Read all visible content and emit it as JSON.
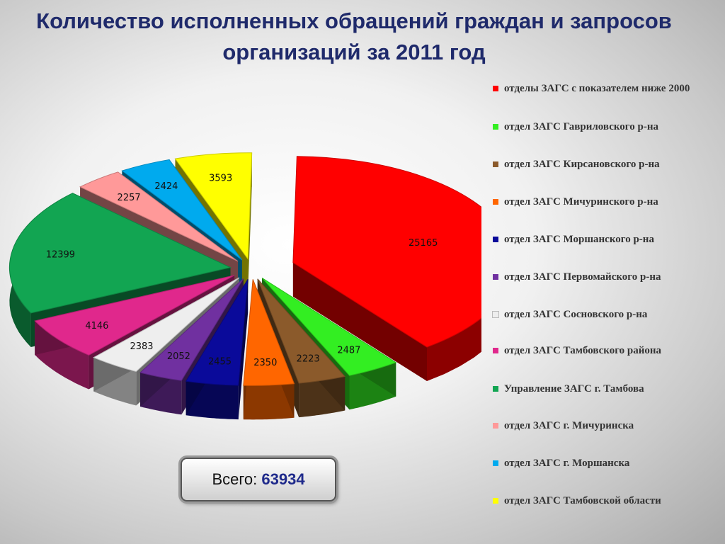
{
  "title": "Количество исполненных обращений граждан и запросов организаций за 2011 год",
  "total": {
    "label": "Всего:",
    "value": "63934"
  },
  "chart_data": {
    "type": "pie",
    "title": "Количество исполненных обращений граждан и запросов организаций за 2011 год",
    "legend_position": "right",
    "slices": [
      {
        "label": "отделы ЗАГС с показателем ниже 2000",
        "value": 25165,
        "color": "#ff0000"
      },
      {
        "label": "отдел ЗАГС Гавриловского р-на",
        "value": 2487,
        "color": "#33ee22"
      },
      {
        "label": "отдел ЗАГС Кирсановского р-на",
        "value": 2223,
        "color": "#8b5a2b"
      },
      {
        "label": "отдел ЗАГС Мичуринского р-на",
        "value": 2350,
        "color": "#ff6600"
      },
      {
        "label": "отдел ЗАГС Моршанского р-на",
        "value": 2455,
        "color": "#0a0a9a"
      },
      {
        "label": "отдел ЗАГС Первомайского р-на",
        "value": 2052,
        "color": "#7030a0"
      },
      {
        "label": "отдел ЗАГС Сосновского р-на",
        "value": 2383,
        "color": "#eeeeee"
      },
      {
        "label": "отдел ЗАГС Тамбовского района",
        "value": 4146,
        "color": "#e0288c"
      },
      {
        "label": "Управление ЗАГС г. Тамбова",
        "value": 12399,
        "color": "#12a552"
      },
      {
        "label": "отдел ЗАГС г. Мичуринска",
        "value": 2257,
        "color": "#ff9999"
      },
      {
        "label": "отдел ЗАГС г. Моршанска",
        "value": 2424,
        "color": "#00aaee"
      },
      {
        "label": "отдел ЗАГС Тамбовской области",
        "value": 3593,
        "color": "#ffff00"
      }
    ]
  }
}
